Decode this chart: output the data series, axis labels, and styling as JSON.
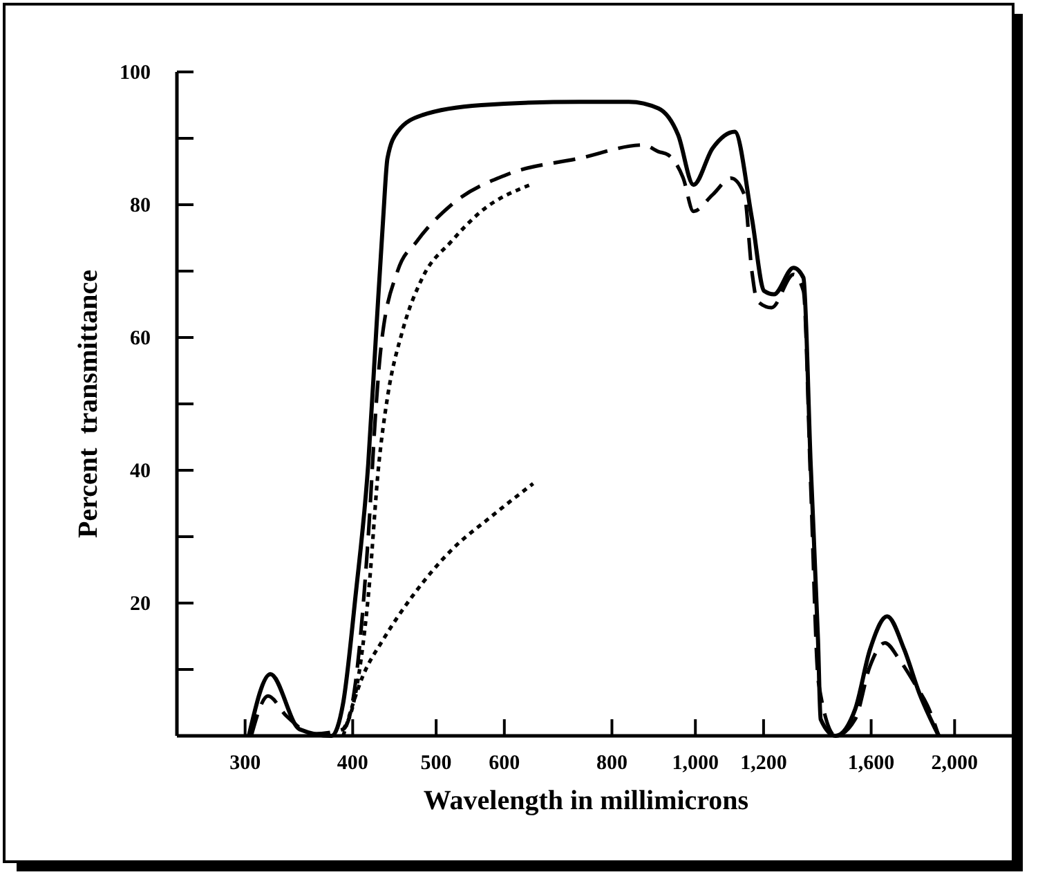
{
  "chart_data": {
    "type": "line",
    "xlabel": "Wavelength in millimicrons",
    "ylabel": "Percent  transmittance",
    "log": "x",
    "xlim": [
      250,
      2400
    ],
    "ylim": [
      0,
      100
    ],
    "xticks": [
      300,
      400,
      500,
      600,
      800,
      {
        "value": 1000,
        "label": "1,000"
      },
      {
        "value": 1200,
        "label": "1,200"
      },
      {
        "value": 1600,
        "label": "1,600"
      },
      {
        "value": 2000,
        "label": "2,000"
      }
    ],
    "yticks": [
      {
        "value": 10,
        "label": null
      },
      20,
      {
        "value": 30,
        "label": null
      },
      40,
      {
        "value": 50,
        "label": null
      },
      60,
      {
        "value": 70,
        "label": null
      },
      80,
      {
        "value": 90,
        "label": null
      },
      100
    ],
    "grid": false,
    "marker": "none",
    "series": [
      {
        "color": "#000000",
        "line_style": "solid",
        "x": [
          303,
          321,
          347,
          378,
          390,
          403,
          417,
          426,
          434,
          439,
          451,
          482,
          564,
          734,
          837,
          906,
          955,
          995,
          1047,
          1111,
          1163,
          1202,
          1234,
          1300,
          1335,
          1361,
          1388,
          1398,
          1455,
          1533,
          1595,
          1670,
          1748,
          1819,
          1917
        ],
        "values": [
          0,
          9.3,
          1,
          0,
          5,
          21,
          41,
          61,
          78,
          87,
          91,
          93.5,
          95,
          95.5,
          95.5,
          94.5,
          90.5,
          83,
          88.5,
          91,
          78,
          67,
          66.5,
          70.5,
          69,
          41,
          14.5,
          2.5,
          0,
          4,
          13,
          18,
          13,
          6.5,
          0
        ]
      },
      {
        "color": "#000000",
        "line_style": "dashed",
        "x": [
          305,
          319,
          335,
          360,
          390,
          403,
          417,
          426,
          431,
          451,
          475,
          521,
          603,
          734,
          871,
          906,
          930,
          968,
          995,
          1047,
          1100,
          1140,
          1163,
          1180,
          1226,
          1300,
          1335,
          1361,
          1390,
          1455,
          1533,
          1595,
          1660,
          1725,
          1795,
          1868,
          1917
        ],
        "values": [
          0,
          6,
          3,
          0.3,
          1,
          8,
          30,
          50,
          58,
          70,
          74.5,
          80,
          84.5,
          87,
          89,
          88,
          87.5,
          84,
          79,
          81.5,
          84,
          81.5,
          70,
          65.5,
          64.5,
          69.5,
          67,
          38,
          8,
          0,
          2.5,
          10.5,
          14,
          11.5,
          8,
          4,
          0
        ]
      },
      {
        "color": "#000000",
        "line_style": "dotted",
        "x": [
          390,
          401,
          417,
          429,
          439,
          457,
          482,
          521,
          564,
          643
        ],
        "values": [
          1,
          5,
          21,
          41,
          51,
          61,
          69,
          74.5,
          79,
          83
        ]
      },
      {
        "color": "#000000",
        "line_style": "dotted",
        "x": [
          390,
          411,
          434,
          469,
          521,
          579,
          648
        ],
        "values": [
          0,
          9,
          14.5,
          21,
          28,
          33,
          38
        ]
      }
    ]
  }
}
